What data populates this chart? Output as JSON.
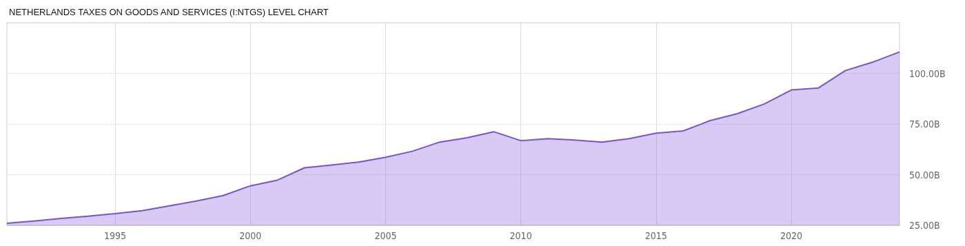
{
  "chart_data": {
    "type": "area",
    "title": "NETHERLANDS TAXES ON GOODS AND SERVICES (I:NTGS) LEVEL CHART",
    "x": [
      1991,
      1992,
      1993,
      1994,
      1995,
      1996,
      1997,
      1998,
      1999,
      2000,
      2001,
      2002,
      2003,
      2004,
      2005,
      2006,
      2007,
      2008,
      2009,
      2010,
      2011,
      2012,
      2013,
      2014,
      2015,
      2016,
      2017,
      2018,
      2019,
      2020,
      2021,
      2022,
      2023,
      2024
    ],
    "series": [
      {
        "color": "#7b4fd8",
        "values": [
          26.0,
          27.1,
          28.4,
          29.5,
          30.8,
          32.2,
          34.6,
          37.0,
          39.7,
          44.5,
          47.3,
          53.4,
          54.8,
          56.2,
          58.6,
          61.6,
          66.1,
          68.2,
          71.2,
          66.8,
          67.8,
          67.1,
          66.1,
          67.8,
          70.5,
          71.6,
          76.7,
          80.1,
          84.9,
          91.8,
          92.8,
          101.4,
          105.5,
          110.6
        ]
      }
    ],
    "xlim": [
      1991,
      2024
    ],
    "xticks": [
      1995,
      2000,
      2005,
      2010,
      2015,
      2020
    ],
    "ylim": [
      25,
      125
    ],
    "yticks": [
      {
        "value": 25,
        "label": "25.00B"
      },
      {
        "value": 50,
        "label": "50.00B"
      },
      {
        "value": 75,
        "label": "75.00B"
      },
      {
        "value": 100,
        "label": "100.00B"
      }
    ],
    "grid": true,
    "marker": "none",
    "line_style": "solid"
  }
}
